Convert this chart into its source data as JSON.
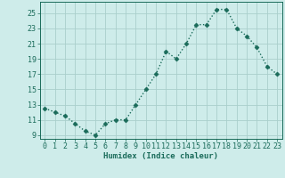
{
  "xlabel": "Humidex (Indice chaleur)",
  "x": [
    0,
    1,
    2,
    3,
    4,
    5,
    6,
    7,
    8,
    9,
    10,
    11,
    12,
    13,
    14,
    15,
    16,
    17,
    18,
    19,
    20,
    21,
    22,
    23
  ],
  "y": [
    12.5,
    12.0,
    11.5,
    10.5,
    9.5,
    9.0,
    10.5,
    11.0,
    11.0,
    13.0,
    15.0,
    17.0,
    20.0,
    19.0,
    21.0,
    23.5,
    23.5,
    25.5,
    25.5,
    23.0,
    22.0,
    20.5,
    18.0,
    17.0
  ],
  "line_color": "#1a6b5a",
  "marker": "D",
  "marker_size": 2.5,
  "line_width": 1.0,
  "bg_color": "#ceecea",
  "grid_color": "#aacfcc",
  "tick_color": "#1a6b5a",
  "label_color": "#1a6b5a",
  "yticks": [
    9,
    11,
    13,
    15,
    17,
    19,
    21,
    23,
    25
  ],
  "xticks": [
    0,
    1,
    2,
    3,
    4,
    5,
    6,
    7,
    8,
    9,
    10,
    11,
    12,
    13,
    14,
    15,
    16,
    17,
    18,
    19,
    20,
    21,
    22,
    23
  ],
  "ylim": [
    8.5,
    26.5
  ],
  "xlim": [
    -0.5,
    23.5
  ],
  "xlabel_fontsize": 6.5,
  "tick_fontsize": 6.0
}
